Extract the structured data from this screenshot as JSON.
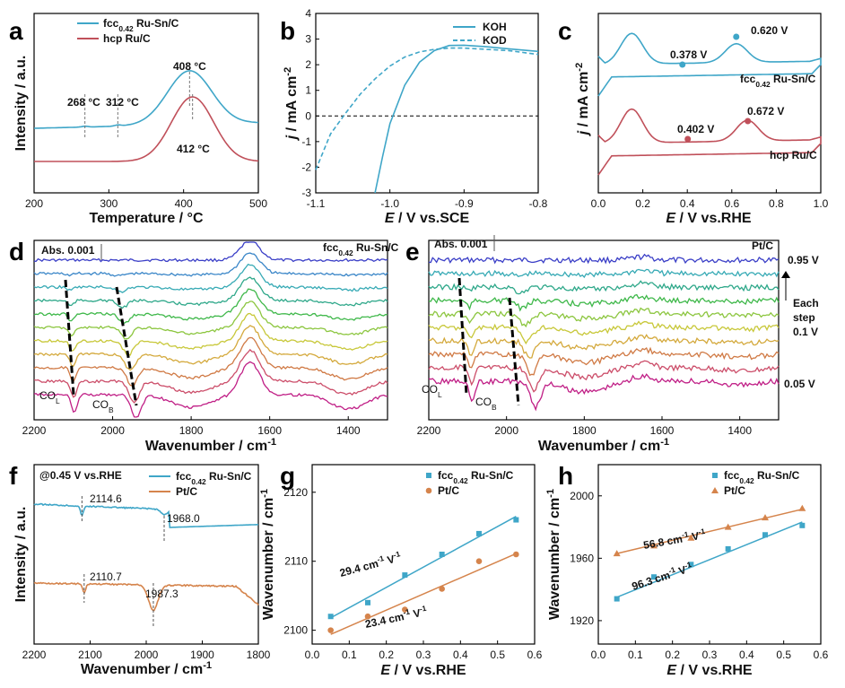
{
  "colors": {
    "blue": "#3fa6c8",
    "red": "#c0505a",
    "orange": "#d5844c",
    "black": "#222222"
  },
  "chart_data": [
    {
      "id": "a",
      "type": "line",
      "panel_label": "a",
      "xlabel": "Temperature / °C",
      "ylabel": "Intensity / a.u.",
      "xlim": [
        200,
        500
      ],
      "xticks": [
        "200",
        "300",
        "400",
        "500"
      ],
      "legend": [
        {
          "label": "fcc",
          "sub": "0.42",
          "suffix": " Ru-Sn/C",
          "color": "blue"
        },
        {
          "label": "hcp Ru/C",
          "color": "red"
        }
      ],
      "annotations": [
        "268 °C",
        "312 °C",
        "408 °C",
        "412 °C"
      ],
      "series": [
        {
          "name": "fcc0.42 Ru-Sn/C",
          "peaks_c": [
            268,
            312,
            408
          ]
        },
        {
          "name": "hcp Ru/C",
          "peaks_c": [
            412
          ]
        }
      ]
    },
    {
      "id": "b",
      "type": "line",
      "panel_label": "b",
      "xlabel": "E / V vs.SCE",
      "ylabel": "j / mA cm-2",
      "xlim": [
        -1.1,
        -0.8
      ],
      "ylim": [
        -3,
        4
      ],
      "xticks": [
        "-1.1",
        "-1.0",
        "-0.9",
        "-0.8"
      ],
      "yticks": [
        "-3",
        "-2",
        "-1",
        "0",
        "1",
        "2",
        "3",
        "4"
      ],
      "legend": [
        {
          "label": "KOH",
          "style": "solid"
        },
        {
          "label": "KOD",
          "style": "dashed"
        }
      ],
      "series": [
        {
          "name": "KOH",
          "x": [
            -1.02,
            -1.01,
            -1.0,
            -0.98,
            -0.96,
            -0.94,
            -0.92,
            -0.9,
            -0.87,
            -0.84,
            -0.8
          ],
          "y": [
            -3,
            -1.6,
            -0.3,
            1.2,
            2.1,
            2.55,
            2.75,
            2.76,
            2.7,
            2.62,
            2.52
          ]
        },
        {
          "name": "KOD",
          "x": [
            -1.1,
            -1.08,
            -1.06,
            -1.04,
            -1.02,
            -1.0,
            -0.98,
            -0.96,
            -0.94,
            -0.92,
            -0.9,
            -0.87,
            -0.84,
            -0.8
          ],
          "y": [
            -2.1,
            -0.7,
            0.1,
            0.85,
            1.45,
            1.95,
            2.3,
            2.5,
            2.6,
            2.65,
            2.65,
            2.6,
            2.55,
            2.4
          ]
        }
      ]
    },
    {
      "id": "c",
      "type": "line",
      "panel_label": "c",
      "xlabel": "E / V vs.RHE",
      "ylabel": "j / mA cm-2",
      "xlim": [
        0.0,
        1.0
      ],
      "xticks": [
        "0.0",
        "0.2",
        "0.4",
        "0.6",
        "0.8",
        "1.0"
      ],
      "annotations": [
        "0.620 V",
        "0.378 V",
        "0.402 V",
        "0.672 V"
      ],
      "curve_labels": [
        {
          "label": "fcc",
          "sub": "0.42",
          "suffix": " Ru-Sn/C"
        },
        {
          "label": "hcp Ru/C"
        }
      ],
      "marked_points": [
        {
          "series": "fcc0.42 Ru-Sn/C",
          "x": 0.378
        },
        {
          "series": "fcc0.42 Ru-Sn/C",
          "x": 0.62
        },
        {
          "series": "hcp Ru/C",
          "x": 0.402
        },
        {
          "series": "hcp Ru/C",
          "x": 0.672
        }
      ]
    },
    {
      "id": "d",
      "type": "line",
      "panel_label": "d",
      "xlabel": "Wavenumber / cm-1",
      "xlim": [
        2200,
        1300
      ],
      "xticks": [
        "2200",
        "2000",
        "1800",
        "1600",
        "1400"
      ],
      "scale_label": "Abs. 0.001",
      "title": {
        "label": "fcc",
        "sub": "0.42",
        "suffix": " Ru-Sn/C"
      },
      "band_labels": [
        {
          "label": "CO",
          "sub": "L"
        },
        {
          "label": "CO",
          "sub": "B"
        }
      ],
      "series_count": 11
    },
    {
      "id": "e",
      "type": "line",
      "panel_label": "e",
      "xlabel": "Wavenumber / cm-1",
      "xlim": [
        2200,
        1300
      ],
      "xticks": [
        "2200",
        "2000",
        "1800",
        "1600",
        "1400"
      ],
      "scale_label": "Abs. 0.001",
      "title": "Pt/C",
      "band_labels": [
        {
          "label": "CO",
          "sub": "L"
        },
        {
          "label": "CO",
          "sub": "B"
        }
      ],
      "potential_labels": [
        "0.95 V",
        "Each",
        "step",
        "0.1 V",
        "0.05 V"
      ],
      "series_count": 10
    },
    {
      "id": "f",
      "type": "line",
      "panel_label": "f",
      "xlabel": "Wavenumber / cm-1",
      "ylabel": "Intensity / a.u.",
      "xlim": [
        2200,
        1800
      ],
      "xticks": [
        "2200",
        "2100",
        "2000",
        "1900",
        "1800"
      ],
      "condition": "@0.45 V vs.RHE",
      "legend": [
        {
          "label": "fcc",
          "sub": "0.42",
          "suffix": " Ru-Sn/C",
          "color": "blue"
        },
        {
          "label": "Pt/C",
          "color": "orange"
        }
      ],
      "annotations": [
        "2114.6",
        "1968.0",
        "2110.7",
        "1987.3"
      ],
      "series": [
        {
          "name": "fcc0.42 Ru-Sn/C",
          "band_positions": [
            2114.6,
            1968.0
          ]
        },
        {
          "name": "Pt/C",
          "band_positions": [
            2110.7,
            1987.3
          ]
        }
      ]
    },
    {
      "id": "g",
      "type": "scatter",
      "panel_label": "g",
      "xlabel": "E / V vs.RHE",
      "ylabel": "Wavenumber / cm-1",
      "xlim": [
        0.0,
        0.6
      ],
      "ylim": [
        2098,
        2124
      ],
      "xticks": [
        "0.0",
        "0.1",
        "0.2",
        "0.3",
        "0.4",
        "0.5",
        "0.6"
      ],
      "yticks": [
        "2100",
        "2110",
        "2120"
      ],
      "legend": [
        {
          "label": "fcc",
          "sub": "0.42",
          "suffix": " Ru-Sn/C",
          "color": "blue",
          "marker": "square"
        },
        {
          "label": "Pt/C",
          "color": "orange",
          "marker": "circle"
        }
      ],
      "slope_labels": [
        {
          "value": "29.4 cm",
          "unit": "-1",
          " V": "V",
          "tail": "-1"
        },
        {
          "value": "23.4 cm",
          "unit": "-1",
          "tail": "-1"
        }
      ],
      "series": [
        {
          "name": "fcc0.42 Ru-Sn/C",
          "x": [
            0.05,
            0.15,
            0.25,
            0.35,
            0.45,
            0.55
          ],
          "y": [
            2102,
            2104,
            2108,
            2111,
            2114,
            2116
          ],
          "fit": [
            2101.8,
            2116.5
          ]
        },
        {
          "name": "Pt/C",
          "x": [
            0.05,
            0.15,
            0.25,
            0.35,
            0.45,
            0.55
          ],
          "y": [
            2100,
            2102,
            2103,
            2106,
            2110,
            2111
          ],
          "fit": [
            2099.4,
            2111.1
          ]
        }
      ]
    },
    {
      "id": "h",
      "type": "scatter",
      "panel_label": "h",
      "xlabel": "E / V vs.RHE",
      "ylabel": "Wavenumber / cm-1",
      "xlim": [
        0.0,
        0.6
      ],
      "ylim": [
        1905,
        2020
      ],
      "xticks": [
        "0.0",
        "0.1",
        "0.2",
        "0.3",
        "0.4",
        "0.5",
        "0.6"
      ],
      "yticks": [
        "1920",
        "1960",
        "2000"
      ],
      "legend": [
        {
          "label": "fcc",
          "sub": "0.42",
          "suffix": " Ru-Sn/C",
          "color": "blue",
          "marker": "square"
        },
        {
          "label": "Pt/C",
          "color": "orange",
          "marker": "triangle"
        }
      ],
      "slope_labels": [
        {
          "value": "56.8 cm",
          "unit": "-1",
          "tail": "-1"
        },
        {
          "value": "96.3 cm",
          "unit": "-1",
          "tail": "-1"
        }
      ],
      "series": [
        {
          "name": "fcc0.42 Ru-Sn/C",
          "x": [
            0.05,
            0.15,
            0.25,
            0.35,
            0.45,
            0.55
          ],
          "y": [
            1934,
            1948,
            1956,
            1966,
            1975,
            1981
          ],
          "fit": [
            1935,
            1983.2
          ]
        },
        {
          "name": "Pt/C",
          "x": [
            0.05,
            0.15,
            0.25,
            0.35,
            0.45,
            0.55
          ],
          "y": [
            1963,
            1968,
            1973,
            1980,
            1986,
            1992
          ],
          "fit": [
            1963,
            1991.4
          ]
        }
      ]
    }
  ]
}
